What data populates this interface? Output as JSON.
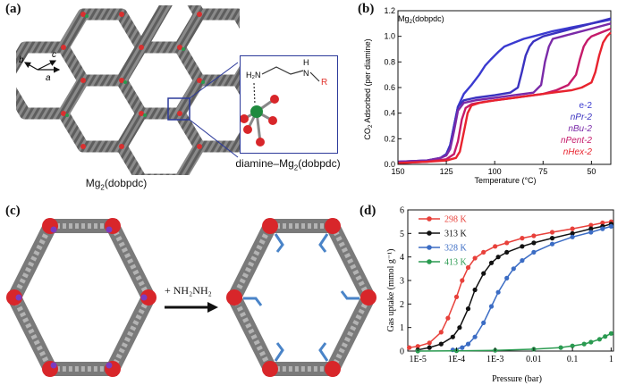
{
  "panel_a": {
    "label": "(a)",
    "caption_main": "Mg",
    "caption_sub": "2",
    "caption_tail": "(dobpdc)",
    "axes": {
      "b": "b",
      "c": "c",
      "a": "a"
    },
    "inset": {
      "h2n": "H₂N",
      "h": "H",
      "n": "N",
      "r": "R",
      "caption": "diamine–Mg",
      "caption_sub": "2",
      "caption_tail": "(dobpdc)"
    }
  },
  "panel_b": {
    "label": "(b)",
    "title": "Mg",
    "title_sub": "2",
    "title_tail": "(dobpdc)",
    "ylabel_pre": "CO",
    "ylabel_sub": "2",
    "ylabel_post": " Adsorbed (per diamine)",
    "xlabel": "Temperature (°C)",
    "legend": [
      {
        "name": "e-2",
        "color": "#3a3ad0"
      },
      {
        "name": "nPr-2",
        "color": "#3a32c0"
      },
      {
        "name": "nBu-2",
        "color": "#7a2aa8"
      },
      {
        "name": "nPent-2",
        "color": "#c51a6a"
      },
      {
        "name": "nHex-2",
        "color": "#e8232e"
      }
    ]
  },
  "panel_c": {
    "label": "(c)",
    "reagent": "+ NH₂NH₂"
  },
  "panel_d": {
    "label": "(d)",
    "ylabel": "Gas uptake (mmol g⁻¹)",
    "xlabel": "Pressure (bar)"
  },
  "chart_data": [
    {
      "type": "line",
      "title": "Mg2(dobpdc)",
      "xlabel": "Temperature (°C)",
      "ylabel": "CO2 Adsorbed (per diamine)",
      "xlim": [
        150,
        40
      ],
      "ylim": [
        0,
        1.2
      ],
      "xticks": [
        "150",
        "125",
        "100",
        "75",
        "50"
      ],
      "xtick_values": [
        150,
        125,
        100,
        75,
        50
      ],
      "yticks": [
        "0.0",
        "0.2",
        "0.4",
        "0.6",
        "0.8",
        "1.0",
        "1.2"
      ],
      "ytick_values": [
        0,
        0.2,
        0.4,
        0.6,
        0.8,
        1.0,
        1.2
      ],
      "series": [
        {
          "name": "e-2",
          "color": "#3a3ad0",
          "x": [
            150,
            135,
            128,
            125,
            123,
            121,
            119,
            116,
            112,
            108,
            105,
            102,
            100,
            98,
            95,
            90,
            85,
            80,
            70,
            60,
            50,
            40
          ],
          "y": [
            0.02,
            0.03,
            0.05,
            0.08,
            0.15,
            0.3,
            0.45,
            0.55,
            0.62,
            0.7,
            0.77,
            0.82,
            0.85,
            0.88,
            0.92,
            0.95,
            0.98,
            1.0,
            1.04,
            1.07,
            1.1,
            1.13
          ]
        },
        {
          "name": "nPr-2",
          "color": "#3a32c0",
          "x": [
            150,
            135,
            128,
            125,
            123,
            121,
            119,
            116,
            110,
            100,
            92,
            88,
            86,
            84,
            82,
            80,
            75,
            70,
            60,
            50,
            40
          ],
          "y": [
            0.02,
            0.03,
            0.05,
            0.08,
            0.15,
            0.3,
            0.45,
            0.5,
            0.52,
            0.54,
            0.56,
            0.6,
            0.72,
            0.85,
            0.92,
            0.96,
            1.0,
            1.02,
            1.06,
            1.1,
            1.14
          ]
        },
        {
          "name": "nBu-2",
          "color": "#7a2aa8",
          "x": [
            150,
            135,
            128,
            125,
            123,
            121,
            119,
            116,
            110,
            100,
            90,
            80,
            76,
            74,
            72,
            70,
            65,
            60,
            50,
            40
          ],
          "y": [
            0.02,
            0.03,
            0.05,
            0.07,
            0.12,
            0.26,
            0.42,
            0.48,
            0.5,
            0.52,
            0.54,
            0.56,
            0.62,
            0.8,
            0.92,
            0.98,
            1.0,
            1.02,
            1.06,
            1.1
          ]
        },
        {
          "name": "nPent-2",
          "color": "#c51a6a",
          "x": [
            150,
            135,
            125,
            121,
            119,
            117,
            115,
            112,
            105,
            95,
            85,
            75,
            68,
            62,
            58,
            56,
            54,
            52,
            50,
            45,
            40
          ],
          "y": [
            0.01,
            0.02,
            0.04,
            0.08,
            0.18,
            0.35,
            0.44,
            0.47,
            0.49,
            0.51,
            0.53,
            0.55,
            0.58,
            0.62,
            0.7,
            0.82,
            0.92,
            0.97,
            1.0,
            1.03,
            1.06
          ]
        },
        {
          "name": "nHex-2",
          "color": "#e8232e",
          "x": [
            150,
            135,
            125,
            120,
            118,
            116,
            114,
            112,
            108,
            100,
            90,
            80,
            70,
            60,
            55,
            50,
            48,
            46,
            44,
            42,
            40
          ],
          "y": [
            0.01,
            0.02,
            0.03,
            0.05,
            0.1,
            0.25,
            0.4,
            0.46,
            0.48,
            0.5,
            0.52,
            0.54,
            0.56,
            0.58,
            0.6,
            0.64,
            0.72,
            0.85,
            0.95,
            1.0,
            1.03
          ]
        }
      ]
    },
    {
      "type": "line",
      "xscale": "log",
      "xlabel": "Pressure (bar)",
      "ylabel": "Gas uptake (mmol g⁻¹)",
      "xlim": [
        5.5e-06,
        1.15
      ],
      "ylim": [
        0,
        6
      ],
      "xticks": [
        "1E-5",
        "1E-4",
        "1E-3",
        "0.01",
        "0.1",
        "1"
      ],
      "xtick_values": [
        1e-05,
        0.0001,
        0.001,
        0.01,
        0.1,
        1
      ],
      "yticks": [
        "0",
        "1",
        "2",
        "3",
        "4",
        "5",
        "6"
      ],
      "ytick_values": [
        0,
        1,
        2,
        3,
        4,
        5,
        6
      ],
      "legend_position": "top-left",
      "series": [
        {
          "name": "298 K",
          "color": "#e8403a",
          "marker": "circle",
          "x": [
            6e-06,
            1e-05,
            2e-05,
            4e-05,
            6e-05,
            0.0001,
            0.00014,
            0.0002,
            0.0003,
            0.0005,
            0.001,
            0.002,
            0.005,
            0.01,
            0.03,
            0.1,
            0.3,
            0.6,
            1
          ],
          "y": [
            0.15,
            0.2,
            0.35,
            0.8,
            1.4,
            2.3,
            3.0,
            3.55,
            3.95,
            4.2,
            4.45,
            4.6,
            4.8,
            4.9,
            5.05,
            5.2,
            5.35,
            5.45,
            5.5
          ]
        },
        {
          "name": "313 K",
          "color": "#111111",
          "marker": "circle",
          "x": [
            1e-05,
            2e-05,
            4e-05,
            8e-05,
            0.00012,
            0.0002,
            0.0003,
            0.0005,
            0.0008,
            0.0012,
            0.002,
            0.005,
            0.01,
            0.03,
            0.1,
            0.3,
            0.6,
            1
          ],
          "y": [
            0.05,
            0.15,
            0.3,
            0.6,
            1.0,
            1.8,
            2.6,
            3.3,
            3.75,
            4.0,
            4.2,
            4.45,
            4.6,
            4.8,
            5.0,
            5.2,
            5.3,
            5.4
          ]
        },
        {
          "name": "328 K",
          "color": "#3b6cc4",
          "marker": "circle",
          "x": [
            8e-05,
            0.00014,
            0.0002,
            0.0003,
            0.0005,
            0.0008,
            0.0012,
            0.002,
            0.003,
            0.005,
            0.01,
            0.03,
            0.1,
            0.3,
            0.6,
            1
          ],
          "y": [
            0.05,
            0.15,
            0.3,
            0.6,
            1.2,
            1.9,
            2.5,
            3.1,
            3.5,
            3.85,
            4.2,
            4.55,
            4.85,
            5.05,
            5.2,
            5.3
          ]
        },
        {
          "name": "413 K",
          "color": "#2a9a50",
          "marker": "circle",
          "x": [
            1e-05,
            0.0001,
            0.001,
            0.01,
            0.05,
            0.1,
            0.2,
            0.3,
            0.5,
            0.7,
            1
          ],
          "y": [
            0.0,
            0.01,
            0.03,
            0.08,
            0.15,
            0.22,
            0.3,
            0.38,
            0.5,
            0.62,
            0.75
          ]
        }
      ]
    }
  ]
}
